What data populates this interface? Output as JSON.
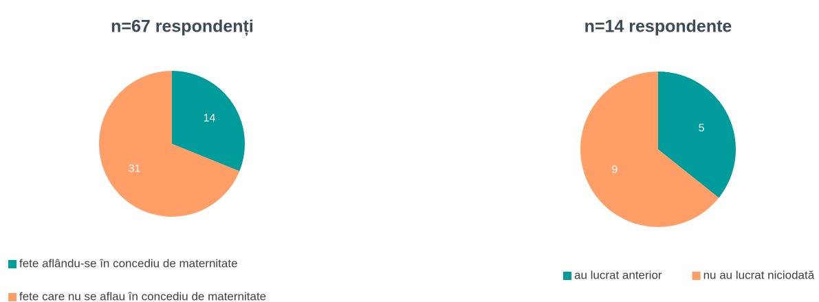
{
  "chart_data": [
    {
      "type": "pie",
      "title": "n=67 respondenți",
      "categories": [
        "fete aflându-se în concediu de maternitate",
        "fete care nu se aflau în concediu de maternitate"
      ],
      "values": [
        14,
        31
      ],
      "colors": [
        "#009b9b",
        "#ff9e66"
      ]
    },
    {
      "type": "pie",
      "title": "n=14 respondente",
      "categories": [
        "au lucrat anterior",
        "nu au lucrat niciodată"
      ],
      "values": [
        5,
        9
      ],
      "colors": [
        "#009b9b",
        "#ff9e66"
      ]
    }
  ]
}
